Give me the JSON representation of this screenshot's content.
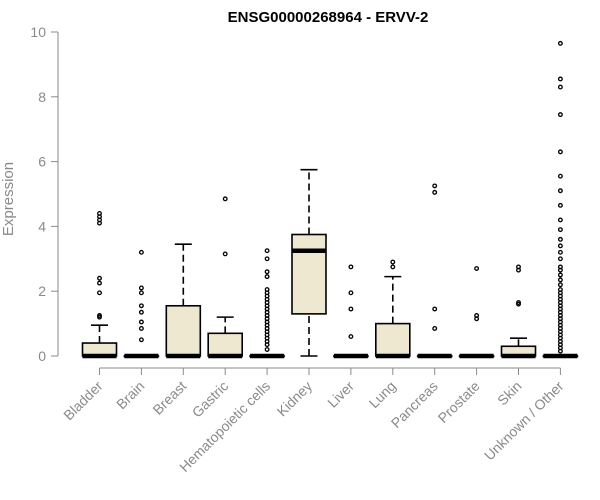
{
  "chart_data": {
    "type": "boxplot",
    "title": "ENSG00000268964 - ERVV-2",
    "xlabel": "",
    "ylabel": "Expression",
    "ylim": [
      0,
      10
    ],
    "yticks": [
      0,
      2,
      4,
      6,
      8,
      10
    ],
    "grid": false,
    "colors": {
      "box_fill": "#efe8d0",
      "stroke": "#000000",
      "axis": "#8a8a8a"
    },
    "categories": [
      "Bladder",
      "Brain",
      "Breast",
      "Gastric",
      "Hematopoietic cells",
      "Kidney",
      "Liver",
      "Lung",
      "Pancreas",
      "Prostate",
      "Skin",
      "Unknown / Other"
    ],
    "boxes": [
      {
        "q1": 0,
        "median": 0,
        "q3": 0.4,
        "whisker_low": 0,
        "whisker_high": 0.95,
        "outliers": [
          1.2,
          1.25,
          1.95,
          2.25,
          2.4,
          4.1,
          4.2,
          4.3,
          4.4
        ]
      },
      {
        "q1": 0,
        "median": 0,
        "q3": 0,
        "whisker_low": 0,
        "whisker_high": 0,
        "outliers": [
          0.5,
          0.85,
          1.05,
          1.35,
          1.55,
          1.95,
          2.1,
          3.2
        ]
      },
      {
        "q1": 0,
        "median": 0,
        "q3": 1.55,
        "whisker_low": 0,
        "whisker_high": 3.45,
        "outliers": []
      },
      {
        "q1": 0,
        "median": 0,
        "q3": 0.7,
        "whisker_low": 0,
        "whisker_high": 1.2,
        "outliers": [
          3.15,
          4.85
        ]
      },
      {
        "q1": 0,
        "median": 0,
        "q3": 0,
        "whisker_low": 0,
        "whisker_high": 0,
        "outliers": [
          0.2,
          0.35,
          0.45,
          0.55,
          0.65,
          0.75,
          0.85,
          0.95,
          1.05,
          1.15,
          1.25,
          1.35,
          1.45,
          1.55,
          1.65,
          1.75,
          1.85,
          1.95,
          2.05,
          2.45,
          2.6,
          3.0,
          3.25
        ]
      },
      {
        "q1": 1.3,
        "median": 3.25,
        "q3": 3.75,
        "whisker_low": 0,
        "whisker_high": 5.75,
        "outliers": []
      },
      {
        "q1": 0,
        "median": 0,
        "q3": 0,
        "whisker_low": 0,
        "whisker_high": 0,
        "outliers": [
          0.6,
          1.45,
          1.95,
          2.75
        ]
      },
      {
        "q1": 0,
        "median": 0,
        "q3": 1.0,
        "whisker_low": 0,
        "whisker_high": 2.45,
        "outliers": [
          2.75,
          2.9
        ]
      },
      {
        "q1": 0,
        "median": 0,
        "q3": 0,
        "whisker_low": 0,
        "whisker_high": 0,
        "outliers": [
          0.85,
          1.45,
          5.05,
          5.25
        ]
      },
      {
        "q1": 0,
        "median": 0,
        "q3": 0,
        "whisker_low": 0,
        "whisker_high": 0,
        "outliers": [
          1.15,
          1.25,
          2.7
        ]
      },
      {
        "q1": 0,
        "median": 0,
        "q3": 0.3,
        "whisker_low": 0,
        "whisker_high": 0.55,
        "outliers": [
          1.6,
          1.65,
          2.65,
          2.75
        ]
      },
      {
        "q1": 0,
        "median": 0,
        "q3": 0,
        "whisker_low": 0,
        "whisker_high": 0,
        "outliers": [
          0.15,
          0.25,
          0.35,
          0.45,
          0.55,
          0.65,
          0.75,
          0.85,
          0.95,
          1.05,
          1.15,
          1.25,
          1.35,
          1.45,
          1.55,
          1.65,
          1.75,
          1.85,
          1.95,
          2.05,
          2.2,
          2.35,
          2.5,
          2.65,
          2.75,
          3.0,
          3.2,
          3.4,
          3.6,
          3.9,
          4.2,
          4.65,
          5.1,
          5.55,
          6.3,
          7.45,
          8.3,
          8.55,
          9.65
        ]
      }
    ]
  }
}
